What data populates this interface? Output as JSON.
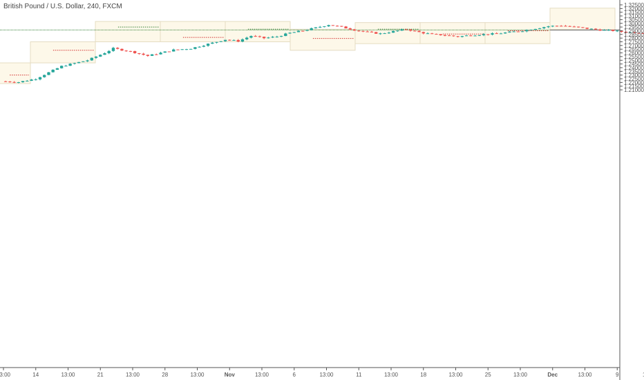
{
  "header": {
    "title": "British Pound / U.S. Dollar, 240, FXCM"
  },
  "chart_data": {
    "type": "candlestick",
    "symbol": "British Pound / U.S. Dollar",
    "interval": "240",
    "source": "FXCM",
    "ylim": [
      1.2075,
      1.3275
    ],
    "y_ticks": [
      "1.32500",
      "1.32000",
      "1.31500",
      "1.31000",
      "1.30500",
      "1.30000",
      "1.29500",
      "1.29000",
      "1.28500",
      "1.28000",
      "1.27500",
      "1.27000",
      "1.26500",
      "1.26000",
      "1.25500",
      "1.25000",
      "1.24500",
      "1.24000",
      "1.23500",
      "1.23000",
      "1.22500",
      "1.22000",
      "1.21500",
      "1.21000"
    ],
    "x_ticks": [
      {
        "label": "13:00",
        "day": 0.0
      },
      {
        "label": "14",
        "day": 0.5
      },
      {
        "label": "13:00",
        "day": 1.0
      },
      {
        "label": "21",
        "day": 1.5
      },
      {
        "label": "13:00",
        "day": 2.0
      },
      {
        "label": "28",
        "day": 2.5
      },
      {
        "label": "13:00",
        "day": 3.0
      },
      {
        "label": "Nov",
        "day": 3.5,
        "bold": true
      },
      {
        "label": "13:00",
        "day": 4.0
      },
      {
        "label": "6",
        "day": 4.5
      },
      {
        "label": "13:00",
        "day": 5.0
      },
      {
        "label": "11",
        "day": 5.5
      },
      {
        "label": "13:00",
        "day": 6.0
      },
      {
        "label": "18",
        "day": 6.5
      },
      {
        "label": "13:00",
        "day": 7.0
      },
      {
        "label": "25",
        "day": 7.5
      },
      {
        "label": "13:00",
        "day": 8.0
      },
      {
        "label": "Dec",
        "day": 8.5,
        "bold": true
      },
      {
        "label": "13:00",
        "day": 9.0
      },
      {
        "label": "9",
        "day": 9.5
      },
      {
        "label": "13:00",
        "day": 10.0
      }
    ],
    "candles_per_week": 30,
    "weekly_ranges": [
      {
        "week": 0,
        "high": 1.2465,
        "low": 1.2185,
        "pivot": 1.23
      },
      {
        "week": 1,
        "high": 1.275,
        "low": 1.2465,
        "pivot": 1.2635
      },
      {
        "week": 2,
        "high": 1.3025,
        "low": 1.275,
        "pivot": 1.295
      },
      {
        "week": 3,
        "high": 1.3025,
        "low": 1.275,
        "pivot": 1.281
      },
      {
        "week": 4,
        "high": 1.3025,
        "low": 1.275,
        "pivot": 1.292
      },
      {
        "week": 5,
        "high": 1.292,
        "low": 1.2635,
        "pivot": 1.2795
      },
      {
        "week": 6,
        "high": 1.301,
        "low": 1.2725,
        "pivot": 1.292
      },
      {
        "week": 7,
        "high": 1.301,
        "low": 1.2725,
        "pivot": 1.2855
      },
      {
        "week": 8,
        "high": 1.301,
        "low": 1.2725,
        "pivot": 1.29
      },
      {
        "week": 9,
        "high": 1.3205,
        "low": 1.291,
        "pivot": null
      }
    ],
    "horizontal_line": 1.291,
    "path": [
      [
        0,
        1.2215
      ],
      [
        4,
        1.2205
      ],
      [
        8,
        1.225
      ],
      [
        14,
        1.242
      ],
      [
        20,
        1.25
      ],
      [
        24,
        1.26
      ],
      [
        26,
        1.266
      ],
      [
        30,
        1.262
      ],
      [
        34,
        1.256
      ],
      [
        37,
        1.26
      ],
      [
        40,
        1.264
      ],
      [
        44,
        1.266
      ],
      [
        48,
        1.272
      ],
      [
        52,
        1.278
      ],
      [
        55,
        1.276
      ],
      [
        58,
        1.283
      ],
      [
        61,
        1.28
      ],
      [
        64,
        1.282
      ],
      [
        67,
        1.287
      ],
      [
        70,
        1.29
      ],
      [
        73,
        1.294
      ],
      [
        76,
        1.298
      ],
      [
        79,
        1.295
      ],
      [
        82,
        1.291
      ],
      [
        85,
        1.288
      ],
      [
        88,
        1.286
      ],
      [
        91,
        1.289
      ],
      [
        94,
        1.292
      ],
      [
        97,
        1.288
      ],
      [
        100,
        1.285
      ],
      [
        103,
        1.284
      ],
      [
        106,
        1.282
      ],
      [
        109,
        1.284
      ],
      [
        112,
        1.285
      ],
      [
        115,
        1.286
      ],
      [
        118,
        1.288
      ],
      [
        121,
        1.29
      ],
      [
        124,
        1.293
      ],
      [
        127,
        1.296
      ],
      [
        130,
        1.297
      ],
      [
        133,
        1.295
      ],
      [
        136,
        1.293
      ],
      [
        139,
        1.291
      ],
      [
        142,
        1.29
      ],
      [
        145,
        1.288
      ],
      [
        148,
        1.2875
      ],
      [
        151,
        1.287
      ],
      [
        154,
        1.288
      ],
      [
        157,
        1.285
      ],
      [
        160,
        1.283
      ],
      [
        163,
        1.281
      ],
      [
        166,
        1.28
      ],
      [
        169,
        1.278
      ],
      [
        172,
        1.28
      ],
      [
        175,
        1.283
      ],
      [
        178,
        1.286
      ],
      [
        181,
        1.285
      ],
      [
        184,
        1.2845
      ],
      [
        187,
        1.284
      ],
      [
        190,
        1.285
      ],
      [
        193,
        1.286
      ],
      [
        196,
        1.289
      ],
      [
        199,
        1.292
      ],
      [
        202,
        1.296
      ],
      [
        205,
        1.2975
      ],
      [
        208,
        1.296
      ],
      [
        211,
        1.294
      ],
      [
        214,
        1.293
      ],
      [
        217,
        1.292
      ],
      [
        220,
        1.293
      ],
      [
        223,
        1.295
      ],
      [
        226,
        1.294
      ],
      [
        229,
        1.29
      ],
      [
        232,
        1.286
      ],
      [
        235,
        1.285
      ],
      [
        238,
        1.287
      ],
      [
        241,
        1.289
      ],
      [
        244,
        1.287
      ],
      [
        247,
        1.286
      ],
      [
        250,
        1.287
      ],
      [
        253,
        1.29
      ],
      [
        256,
        1.293
      ],
      [
        259,
        1.292
      ],
      [
        262,
        1.29
      ],
      [
        265,
        1.289
      ],
      [
        268,
        1.291
      ],
      [
        271,
        1.294
      ],
      [
        274,
        1.297
      ],
      [
        277,
        1.2995
      ],
      [
        280,
        1.299
      ],
      [
        283,
        1.304
      ],
      [
        286,
        1.309
      ],
      [
        289,
        1.312
      ],
      [
        292,
        1.315
      ],
      [
        295,
        1.316
      ],
      [
        298,
        1.313
      ]
    ]
  }
}
